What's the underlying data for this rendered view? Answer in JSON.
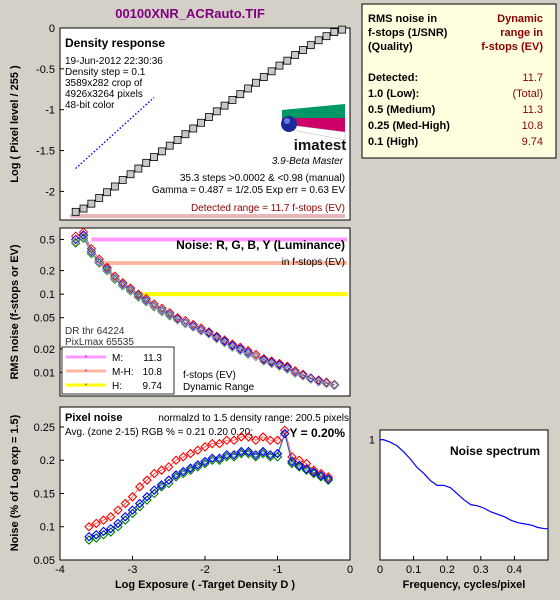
{
  "title": "00100XNR_ACRauto.TIF",
  "colors": {
    "title": "#800080",
    "dark_red": "#8b0000",
    "blue": "#0000ff",
    "yellow": "#ffff00",
    "pink": "#ff99ff",
    "salmon": "#ffb8a0"
  },
  "density": {
    "title": "Density response",
    "info": [
      "19-Jun-2012 22:30:36",
      "Density step = 0.1",
      "3589x282 crop of",
      "4926x3264 pixels",
      "48-bit color"
    ],
    "steps_text": "35.3 steps >0.0002 & <0.98 (manual)",
    "gamma_text": "Gamma = 0.487 = 1/2.05  Exp err = 0.63 EV",
    "range_text": "Detected range = 11.7 f-stops (EV)",
    "logo_text": "imatest",
    "version_text": "3.9-Beta  Master",
    "ylabel": "Log ( Pixel level / 255 )",
    "yticks": [
      "0",
      "-0.5",
      "-1",
      "-1.5",
      "-2"
    ]
  },
  "noise": {
    "title": "Noise: R, G, B, Y (Luminance)",
    "subtitle": "in f-stops (EV)",
    "ylabel": "RMS noise (f-stops or EV)",
    "yticks": [
      "0.5",
      "0.2",
      "0.1",
      "0.05",
      "0.02",
      "0.01"
    ],
    "dr_lines": [
      "DR thr 64224",
      "PixLmax 65535"
    ],
    "legend": [
      {
        "label": "M:",
        "value": "11.3",
        "color": "#ff99ff"
      },
      {
        "label": "M-H:",
        "value": "10.8",
        "color": "#ffb8a0"
      },
      {
        "label": "H:",
        "value": "9.74",
        "color": "#ffff00"
      }
    ],
    "dr_note": [
      "f-stops (EV)",
      "Dynamic Range"
    ]
  },
  "pixel_noise": {
    "title": "Pixel noise",
    "norm_text": "normalzd to 1.5 density range: 200.5 pixels",
    "avg_text": "Avg. (zone 2-15) RGB % = 0.21  0.20  0.20;",
    "y_text": "Y = 0.20%",
    "ylabel": "Noise (% of Log exp = 1.5)",
    "xlabel": "Log Exposure ( -Target Density D )",
    "yticks": [
      "0.25",
      "0.2",
      "0.15",
      "0.1",
      "0.05"
    ],
    "xticks": [
      "-4",
      "-3",
      "-2",
      "-1",
      "0"
    ]
  },
  "spectrum": {
    "title": "Noise spectrum",
    "xlabel": "Frequency, cycles/pixel",
    "yticks": [
      "1"
    ],
    "xticks": [
      "0",
      "0.1",
      "0.2",
      "0.3",
      "0.4"
    ]
  },
  "dr_table": {
    "header_left": [
      "RMS noise in",
      "f-stops (1/SNR)",
      "(Quality)"
    ],
    "header_right": [
      "Dynamic",
      "range in",
      "f-stops (EV)"
    ],
    "rows": [
      {
        "label": "Detected:",
        "value": "11.7"
      },
      {
        "label": "1.0  (Low):",
        "value": "(Total)"
      },
      {
        "label": "0.5  (Medium)",
        "value": "11.3"
      },
      {
        "label": "0.25 (Med-High)",
        "value": "10.8"
      },
      {
        "label": "0.1  (High)",
        "value": "9.74"
      }
    ]
  },
  "chart_data": [
    {
      "type": "line",
      "title": "Density response",
      "ylabel": "Log ( Pixel level / 255 )",
      "xlim": [
        -3.8,
        -0.1
      ],
      "ylim": [
        -2.35,
        0
      ],
      "series": [
        {
          "x": [
            -3.6,
            -3.5,
            -3.4,
            -3.3,
            -3.2,
            -3.1,
            -3.0,
            -2.9,
            -2.8,
            -2.7,
            -2.6,
            -2.5,
            -2.4,
            -2.3,
            -2.2,
            -2.1,
            -2.0,
            -1.9,
            -1.8,
            -1.7,
            -1.6,
            -1.5,
            -1.4,
            -1.3,
            -1.2,
            -1.1,
            -1.0,
            -0.9,
            -0.8,
            -0.7,
            -0.6,
            -0.5,
            -0.4,
            -0.3,
            -0.2
          ],
          "y": [
            -2.25,
            -2.21,
            -2.15,
            -2.08,
            -2.01,
            -1.94,
            -1.86,
            -1.79,
            -1.72,
            -1.65,
            -1.58,
            -1.51,
            -1.44,
            -1.37,
            -1.3,
            -1.23,
            -1.16,
            -1.09,
            -1.02,
            -0.95,
            -0.88,
            -0.81,
            -0.74,
            -0.67,
            -0.6,
            -0.53,
            -0.46,
            -0.4,
            -0.33,
            -0.27,
            -0.21,
            -0.15,
            -0.1,
            -0.05,
            -0.02
          ]
        },
        {
          "x": [
            -3.6,
            -2.6
          ],
          "y": [
            -1.72,
            -0.85
          ]
        }
      ]
    },
    {
      "type": "scatter",
      "title": "Noise: R, G, B, Y (Luminance)",
      "ylabel": "RMS noise (f-stops or EV)",
      "log_y": true,
      "xlim": [
        -3.8,
        -0.1
      ],
      "ylim": [
        0.005,
        0.7
      ],
      "series": [
        {
          "name": "R",
          "color": "#ff0000",
          "x": [
            -3.6,
            -3.5,
            -3.4,
            -3.3,
            -3.2,
            -3.1,
            -3.0,
            -2.9,
            -2.8,
            -2.7,
            -2.6,
            -2.5,
            -2.4,
            -2.3,
            -2.2,
            -2.1,
            -2.0,
            -1.9,
            -1.8,
            -1.7,
            -1.6,
            -1.5,
            -1.4,
            -1.3,
            -1.2,
            -1.1,
            -1.0,
            -0.9,
            -0.8,
            -0.7,
            -0.6,
            -0.5,
            -0.4,
            -0.3
          ],
          "y": [
            0.55,
            0.62,
            0.38,
            0.28,
            0.22,
            0.17,
            0.14,
            0.12,
            0.1,
            0.088,
            0.075,
            0.066,
            0.058,
            0.05,
            0.046,
            0.041,
            0.037,
            0.033,
            0.029,
            0.026,
            0.023,
            0.021,
            0.019,
            0.017,
            0.015,
            0.014,
            0.013,
            0.012,
            0.0105,
            0.0095,
            0.0085,
            0.008,
            0.0075,
            0.007
          ]
        },
        {
          "name": "G",
          "color": "#008000",
          "x": [
            -3.6,
            -3.5,
            -3.4,
            -3.3,
            -3.2,
            -3.1,
            -3.0,
            -2.9,
            -2.8,
            -2.7,
            -2.6,
            -2.5,
            -2.4,
            -2.3,
            -2.2,
            -2.1,
            -2.0,
            -1.9,
            -1.8,
            -1.7,
            -1.6,
            -1.5,
            -1.4,
            -1.3,
            -1.2,
            -1.1,
            -1.0,
            -0.9,
            -0.8,
            -0.7,
            -0.6,
            -0.5,
            -0.4,
            -0.3
          ],
          "y": [
            0.45,
            0.52,
            0.33,
            0.25,
            0.2,
            0.155,
            0.128,
            0.11,
            0.092,
            0.08,
            0.069,
            0.06,
            0.053,
            0.047,
            0.042,
            0.038,
            0.034,
            0.031,
            0.027,
            0.024,
            0.021,
            0.019,
            0.017,
            0.016,
            0.014,
            0.013,
            0.012,
            0.011,
            0.0098,
            0.009,
            0.0082,
            0.0076,
            0.0072,
            0.0068
          ]
        },
        {
          "name": "B",
          "color": "#0000ff",
          "x": [
            -3.6,
            -3.5,
            -3.4,
            -3.3,
            -3.2,
            -3.1,
            -3.0,
            -2.9,
            -2.8,
            -2.7,
            -2.6,
            -2.5,
            -2.4,
            -2.3,
            -2.2,
            -2.1,
            -2.0,
            -1.9,
            -1.8,
            -1.7,
            -1.6,
            -1.5,
            -1.4,
            -1.3,
            -1.2,
            -1.1,
            -1.0,
            -0.9,
            -0.8,
            -0.7,
            -0.6,
            -0.5,
            -0.4,
            -0.3
          ],
          "y": [
            0.5,
            0.57,
            0.35,
            0.26,
            0.21,
            0.16,
            0.133,
            0.114,
            0.096,
            0.083,
            0.071,
            0.062,
            0.055,
            0.048,
            0.043,
            0.039,
            0.035,
            0.032,
            0.028,
            0.025,
            0.022,
            0.02,
            0.018,
            0.016,
            0.0145,
            0.0135,
            0.0125,
            0.0115,
            0.01,
            0.0092,
            0.0084,
            0.0078,
            0.0073,
            0.0069
          ]
        },
        {
          "name": "Y",
          "color": "#a0a0a0",
          "x": [
            -3.6,
            -3.5,
            -3.4,
            -3.3,
            -3.2,
            -3.1,
            -3.0,
            -2.9,
            -2.8,
            -2.7,
            -2.6,
            -2.5,
            -2.4,
            -2.3,
            -2.2,
            -2.1,
            -2.0,
            -1.9,
            -1.8,
            -1.7,
            -1.6,
            -1.5,
            -1.4,
            -1.3,
            -1.2,
            -1.1,
            -1.0,
            -0.9,
            -0.8,
            -0.7,
            -0.6,
            -0.5,
            -0.4,
            -0.3
          ],
          "y": [
            0.47,
            0.54,
            0.34,
            0.255,
            0.205,
            0.158,
            0.13,
            0.112,
            0.094,
            0.081,
            0.07,
            0.061,
            0.054,
            0.047,
            0.042,
            0.038,
            0.034,
            0.031,
            0.027,
            0.024,
            0.021,
            0.019,
            0.017,
            0.016,
            0.014,
            0.013,
            0.012,
            0.011,
            0.0098,
            0.009,
            0.0082,
            0.0076,
            0.0072,
            0.0068
          ]
        }
      ]
    },
    {
      "type": "scatter",
      "title": "Pixel noise",
      "xlabel": "Log Exposure ( -Target Density D )",
      "ylabel": "Noise (% of Log exp = 1.5)",
      "xlim": [
        -4,
        0
      ],
      "ylim": [
        0.05,
        0.28
      ],
      "series": [
        {
          "name": "R",
          "color": "#ff0000",
          "x": [
            -3.6,
            -3.5,
            -3.4,
            -3.3,
            -3.2,
            -3.1,
            -3.0,
            -2.9,
            -2.8,
            -2.7,
            -2.6,
            -2.5,
            -2.4,
            -2.3,
            -2.2,
            -2.1,
            -2.0,
            -1.9,
            -1.8,
            -1.7,
            -1.6,
            -1.5,
            -1.4,
            -1.3,
            -1.2,
            -1.1,
            -1.0,
            -0.9,
            -0.8,
            -0.7,
            -0.6,
            -0.5,
            -0.4,
            -0.3
          ],
          "y": [
            0.1,
            0.105,
            0.11,
            0.115,
            0.125,
            0.135,
            0.145,
            0.16,
            0.17,
            0.18,
            0.185,
            0.19,
            0.2,
            0.205,
            0.21,
            0.215,
            0.22,
            0.225,
            0.225,
            0.23,
            0.23,
            0.235,
            0.235,
            0.23,
            0.235,
            0.23,
            0.23,
            0.245,
            0.205,
            0.2,
            0.195,
            0.185,
            0.18,
            0.175
          ]
        },
        {
          "name": "G",
          "color": "#008000",
          "x": [
            -3.6,
            -3.5,
            -3.4,
            -3.3,
            -3.2,
            -3.1,
            -3.0,
            -2.9,
            -2.8,
            -2.7,
            -2.6,
            -2.5,
            -2.4,
            -2.3,
            -2.2,
            -2.1,
            -2.0,
            -1.9,
            -1.8,
            -1.7,
            -1.6,
            -1.5,
            -1.4,
            -1.3,
            -1.2,
            -1.1,
            -1.0,
            -0.9,
            -0.8,
            -0.7,
            -0.6,
            -0.5,
            -0.4,
            -0.3
          ],
          "y": [
            0.08,
            0.083,
            0.088,
            0.092,
            0.1,
            0.11,
            0.12,
            0.13,
            0.14,
            0.15,
            0.16,
            0.165,
            0.175,
            0.18,
            0.185,
            0.19,
            0.195,
            0.2,
            0.2,
            0.205,
            0.205,
            0.21,
            0.21,
            0.205,
            0.21,
            0.205,
            0.205,
            0.24,
            0.195,
            0.19,
            0.185,
            0.18,
            0.175,
            0.17
          ]
        },
        {
          "name": "B",
          "color": "#0000ff",
          "x": [
            -3.6,
            -3.5,
            -3.4,
            -3.3,
            -3.2,
            -3.1,
            -3.0,
            -2.9,
            -2.8,
            -2.7,
            -2.6,
            -2.5,
            -2.4,
            -2.3,
            -2.2,
            -2.1,
            -2.0,
            -1.9,
            -1.8,
            -1.7,
            -1.6,
            -1.5,
            -1.4,
            -1.3,
            -1.2,
            -1.1,
            -1.0,
            -0.9,
            -0.8,
            -0.7,
            -0.6,
            -0.5,
            -0.4,
            -0.3
          ],
          "y": [
            0.085,
            0.088,
            0.093,
            0.097,
            0.105,
            0.115,
            0.125,
            0.135,
            0.145,
            0.155,
            0.163,
            0.17,
            0.178,
            0.183,
            0.188,
            0.193,
            0.198,
            0.203,
            0.203,
            0.208,
            0.208,
            0.213,
            0.213,
            0.208,
            0.213,
            0.208,
            0.21,
            0.24,
            0.198,
            0.192,
            0.187,
            0.182,
            0.177,
            0.172
          ]
        }
      ]
    },
    {
      "type": "line",
      "title": "Noise spectrum",
      "xlabel": "Frequency, cycles/pixel",
      "xlim": [
        0,
        0.5
      ],
      "ylim": [
        0,
        1.08
      ],
      "series": [
        {
          "x": [
            0,
            0.01,
            0.03,
            0.05,
            0.07,
            0.09,
            0.11,
            0.13,
            0.15,
            0.17,
            0.19,
            0.21,
            0.23,
            0.25,
            0.27,
            0.29,
            0.31,
            0.33,
            0.35,
            0.37,
            0.39,
            0.41,
            0.43,
            0.45,
            0.47,
            0.49,
            0.5
          ],
          "y": [
            1.0,
            1.0,
            0.98,
            0.95,
            0.9,
            0.84,
            0.77,
            0.72,
            0.66,
            0.62,
            0.62,
            0.6,
            0.55,
            0.5,
            0.46,
            0.45,
            0.43,
            0.4,
            0.38,
            0.36,
            0.33,
            0.31,
            0.3,
            0.29,
            0.27,
            0.26,
            0.26
          ]
        }
      ]
    }
  ]
}
